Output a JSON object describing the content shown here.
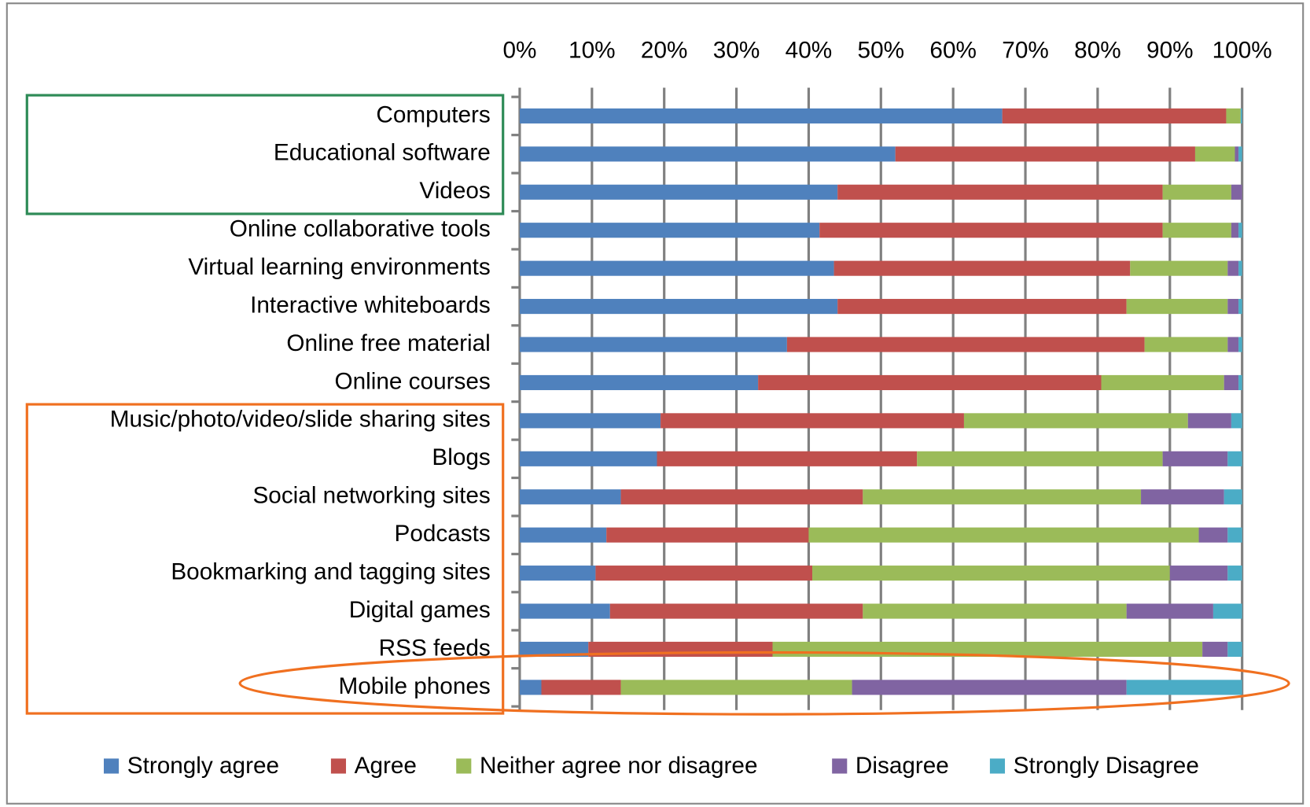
{
  "chart_data": {
    "type": "stacked_barh",
    "categories": [
      "Computers",
      "Educational software",
      "Videos",
      "Online collaborative tools",
      "Virtual learning environments",
      "Interactive whiteboards",
      "Online free material",
      "Online courses",
      "Music/photo/video/slide sharing sites",
      "Blogs",
      "Social networking sites",
      "Podcasts",
      "Bookmarking and tagging sites",
      "Digital games",
      "RSS feeds",
      "Mobile phones"
    ],
    "series": [
      {
        "name": "Strongly agree",
        "color": "#4f81bd",
        "values": [
          66.8,
          52,
          44,
          41.5,
          43.5,
          44,
          37,
          33,
          19.5,
          19,
          14,
          12,
          10.5,
          12.5,
          9.5,
          3
        ]
      },
      {
        "name": "Agree",
        "color": "#c0504d",
        "values": [
          31,
          41.5,
          45,
          47.5,
          41,
          40,
          49.5,
          47.5,
          42,
          36,
          33.5,
          28,
          30,
          35,
          25.5,
          11
        ]
      },
      {
        "name": "Neither agree nor disagree",
        "color": "#9bbb59",
        "values": [
          2,
          5.5,
          9.5,
          9.5,
          13.5,
          14,
          11.5,
          17,
          31,
          34,
          38.5,
          54,
          49.5,
          36.5,
          59.5,
          32
        ]
      },
      {
        "name": "Disagree",
        "color": "#8064a2",
        "values": [
          0,
          0.5,
          1.5,
          1,
          1.5,
          1.5,
          1.5,
          2,
          6,
          9,
          11.5,
          4,
          8,
          12,
          3.5,
          38
        ]
      },
      {
        "name": "Strongly Disagree",
        "color": "#4bacc6",
        "values": [
          0.2,
          0.5,
          0,
          0.5,
          0.5,
          0.5,
          0.5,
          0.5,
          1.5,
          2,
          2.5,
          2,
          2,
          4,
          2,
          16
        ]
      }
    ],
    "xlim": [
      0,
      100
    ],
    "xticks": [
      {
        "value": 0,
        "label": "0%"
      },
      {
        "value": 10,
        "label": "10%"
      },
      {
        "value": 20,
        "label": "20%"
      },
      {
        "value": 30,
        "label": "30%"
      },
      {
        "value": 40,
        "label": "40%"
      },
      {
        "value": 50,
        "label": "50%"
      },
      {
        "value": 60,
        "label": "60%"
      },
      {
        "value": 70,
        "label": "70%"
      },
      {
        "value": 80,
        "label": "80%"
      },
      {
        "value": 90,
        "label": "90%"
      },
      {
        "value": 100,
        "label": "100%"
      }
    ],
    "grid": true,
    "legend": "bottom"
  }
}
